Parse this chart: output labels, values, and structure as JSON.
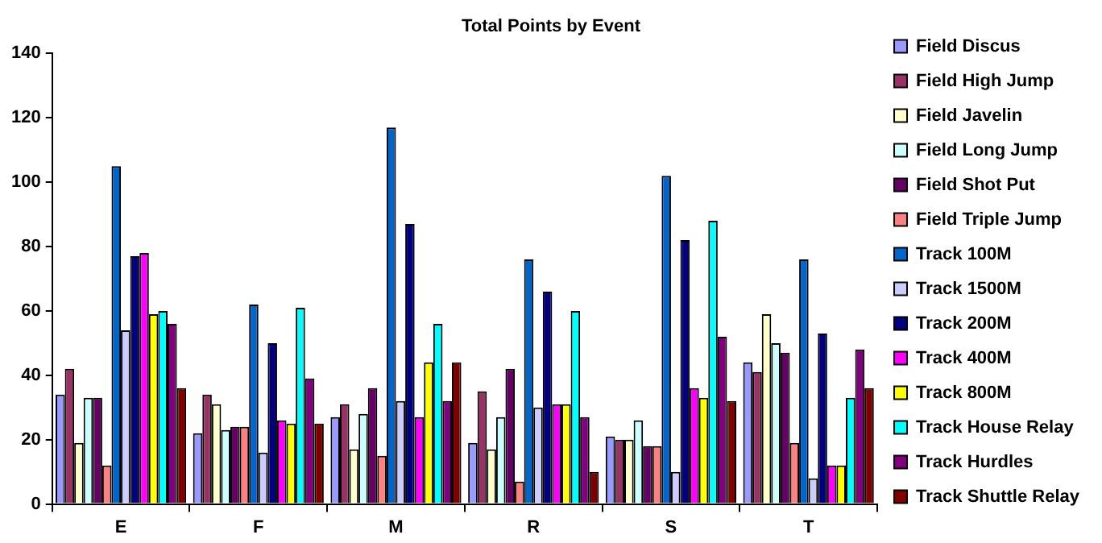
{
  "chart_data": {
    "type": "bar",
    "title": "Total Points by Event",
    "categories": [
      "E",
      "F",
      "M",
      "R",
      "S",
      "T"
    ],
    "ylim": [
      0,
      140
    ],
    "yticks": [
      0,
      20,
      40,
      60,
      80,
      100,
      120,
      140
    ],
    "grid": false,
    "legend": "right",
    "series": [
      {
        "name": "Field Discus",
        "color": "#9999ff",
        "values": [
          34,
          22,
          27,
          19,
          21,
          44
        ]
      },
      {
        "name": "Field High Jump",
        "color": "#993366",
        "values": [
          42,
          34,
          31,
          35,
          20,
          41
        ]
      },
      {
        "name": "Field Javelin",
        "color": "#ffffcc",
        "values": [
          19,
          31,
          17,
          17,
          20,
          59
        ]
      },
      {
        "name": "Field Long Jump",
        "color": "#ccffff",
        "values": [
          33,
          23,
          28,
          27,
          26,
          50
        ]
      },
      {
        "name": "Field Shot Put",
        "color": "#660066",
        "values": [
          33,
          24,
          36,
          42,
          18,
          47
        ]
      },
      {
        "name": "Field Triple Jump",
        "color": "#ff8080",
        "values": [
          12,
          24,
          15,
          7,
          18,
          19
        ]
      },
      {
        "name": "Track 100M",
        "color": "#0066cc",
        "values": [
          105,
          62,
          117,
          76,
          102,
          76
        ]
      },
      {
        "name": "Track 1500M",
        "color": "#ccccff",
        "values": [
          54,
          16,
          32,
          30,
          10,
          8
        ]
      },
      {
        "name": "Track 200M",
        "color": "#000080",
        "values": [
          77,
          50,
          87,
          66,
          82,
          53
        ]
      },
      {
        "name": "Track 400M",
        "color": "#ff00ff",
        "values": [
          78,
          26,
          27,
          31,
          36,
          12
        ]
      },
      {
        "name": "Track 800M",
        "color": "#ffff00",
        "values": [
          59,
          25,
          44,
          31,
          33,
          12
        ]
      },
      {
        "name": "Track House Relay",
        "color": "#00ffff",
        "values": [
          60,
          61,
          56,
          60,
          88,
          33
        ]
      },
      {
        "name": "Track Hurdles",
        "color": "#800080",
        "values": [
          56,
          39,
          32,
          27,
          52,
          48
        ]
      },
      {
        "name": "Track Shuttle Relay",
        "color": "#800000",
        "values": [
          36,
          25,
          44,
          10,
          32,
          36
        ]
      }
    ]
  }
}
